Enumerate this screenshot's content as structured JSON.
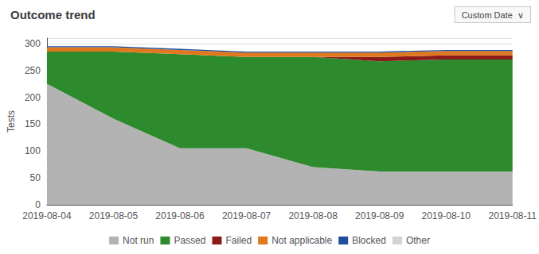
{
  "chart_data": {
    "type": "area",
    "title": "Outcome trend",
    "ylabel": "Tests",
    "annotations": [
      "Custom Date  ∨"
    ],
    "categories": [
      "2019-08-04",
      "2019-08-05",
      "2019-08-06",
      "2019-08-07",
      "2019-08-08",
      "2019-08-09",
      "2019-08-10",
      "2019-08-11"
    ],
    "series": [
      {
        "name": "Not run",
        "color": "#b3b3b3",
        "values": [
          225,
          160,
          105,
          105,
          70,
          62,
          62,
          62
        ]
      },
      {
        "name": "Passed",
        "color": "#2d8a2d",
        "values": [
          60,
          125,
          175,
          170,
          205,
          205,
          208,
          208
        ]
      },
      {
        "name": "Failed",
        "color": "#8b1a1a",
        "values": [
          0,
          0,
          0,
          0,
          0,
          8,
          8,
          8
        ]
      },
      {
        "name": "Not applicable",
        "color": "#e07820",
        "values": [
          8,
          8,
          8,
          8,
          8,
          8,
          8,
          8
        ]
      },
      {
        "name": "Blocked",
        "color": "#1f4e9c",
        "values": [
          2,
          2,
          2,
          2,
          2,
          2,
          2,
          2
        ]
      },
      {
        "name": "Other",
        "color": "#d3d3d3",
        "values": [
          0,
          0,
          0,
          0,
          0,
          0,
          0,
          0
        ]
      }
    ],
    "stacked": true,
    "ylim": [
      0,
      310
    ],
    "yticks": [
      0,
      50,
      100,
      150,
      200,
      250,
      300
    ],
    "grid": true,
    "legend": "bottom"
  }
}
